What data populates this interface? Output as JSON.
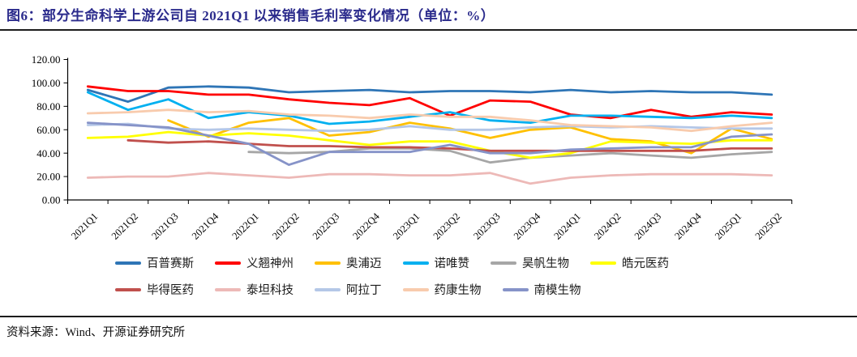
{
  "title": "图6：部分生命科学上游公司自 2021Q1 以来销售毛利率变化情况（单位：%）",
  "source": "资料来源：Wind、开源证券研究所",
  "colors": {
    "title_navy": "#2B2B8C",
    "rule": "#1c1c1c",
    "axis": "#000000"
  },
  "chart_data": {
    "type": "line",
    "title": "部分生命科学上游公司自2021Q1以来销售毛利率变化情况",
    "unit": "%",
    "xlabel": "",
    "ylabel": "",
    "grid": false,
    "legend_position": "bottom",
    "y_axis": {
      "min": 0,
      "max": 120,
      "step": 20,
      "decimals": 2
    },
    "categories": [
      "2021Q1",
      "2021Q2",
      "2021Q3",
      "2021Q4",
      "2022Q1",
      "2022Q2",
      "2022Q3",
      "2022Q4",
      "2023Q1",
      "2023Q2",
      "2023Q3",
      "2023Q4",
      "2024Q1",
      "2024Q2",
      "2024Q3",
      "2024Q4",
      "2025Q1",
      "2025Q2"
    ],
    "series": [
      {
        "name": "百普赛斯",
        "color": "#2E75B6",
        "values": [
          94,
          84,
          96,
          97,
          96,
          92,
          93,
          94,
          92,
          93,
          93,
          92,
          94,
          92,
          93,
          92,
          92,
          90
        ]
      },
      {
        "name": "义翘神州",
        "color": "#FF0000",
        "values": [
          97,
          93,
          93,
          90,
          90,
          86,
          83,
          81,
          87,
          72,
          85,
          84,
          73,
          70,
          77,
          71,
          75,
          73
        ]
      },
      {
        "name": "奥浦迈",
        "color": "#FFC000",
        "values": [
          null,
          null,
          68,
          54,
          66,
          70,
          55,
          58,
          66,
          61,
          53,
          60,
          62,
          52,
          50,
          40,
          61,
          52
        ]
      },
      {
        "name": "诺唯赞",
        "color": "#00B0F0",
        "values": [
          92,
          77,
          86,
          70,
          75,
          72,
          65,
          67,
          71,
          75,
          68,
          66,
          72,
          72,
          71,
          70,
          72,
          70
        ]
      },
      {
        "name": "昊帆生物",
        "color": "#A6A6A6",
        "values": [
          null,
          null,
          null,
          null,
          41,
          40,
          41,
          44,
          44,
          42,
          32,
          36,
          38,
          40,
          38,
          36,
          39,
          41
        ]
      },
      {
        "name": "皓元医药",
        "color": "#FFFF00",
        "values": [
          53,
          54,
          58,
          55,
          57,
          55,
          51,
          47,
          50,
          50,
          42,
          36,
          40,
          50,
          49,
          48,
          51,
          51
        ]
      },
      {
        "name": "毕得医药",
        "color": "#C0504D",
        "values": [
          null,
          51,
          49,
          50,
          48,
          46,
          46,
          45,
          45,
          44,
          42,
          42,
          42,
          42,
          42,
          42,
          44,
          44
        ]
      },
      {
        "name": "泰坦科技",
        "color": "#EDB9B7",
        "values": [
          19,
          20,
          20,
          23,
          21,
          19,
          22,
          22,
          21,
          21,
          23,
          14,
          19,
          21,
          22,
          22,
          22,
          21
        ]
      },
      {
        "name": "阿拉丁",
        "color": "#B4C7E7",
        "values": [
          64,
          65,
          61,
          60,
          61,
          60,
          59,
          60,
          63,
          60,
          60,
          62,
          63,
          62,
          63,
          62,
          61,
          61
        ]
      },
      {
        "name": "药康生物",
        "color": "#F8CBAD",
        "values": [
          74,
          75,
          77,
          75,
          76,
          73,
          72,
          70,
          73,
          71,
          71,
          68,
          64,
          63,
          62,
          59,
          63,
          66
        ]
      },
      {
        "name": "南模生物",
        "color": "#8693C8",
        "values": [
          66,
          64,
          62,
          55,
          48,
          30,
          41,
          41,
          41,
          47,
          40,
          40,
          43,
          44,
          45,
          45,
          54,
          56
        ]
      }
    ]
  }
}
